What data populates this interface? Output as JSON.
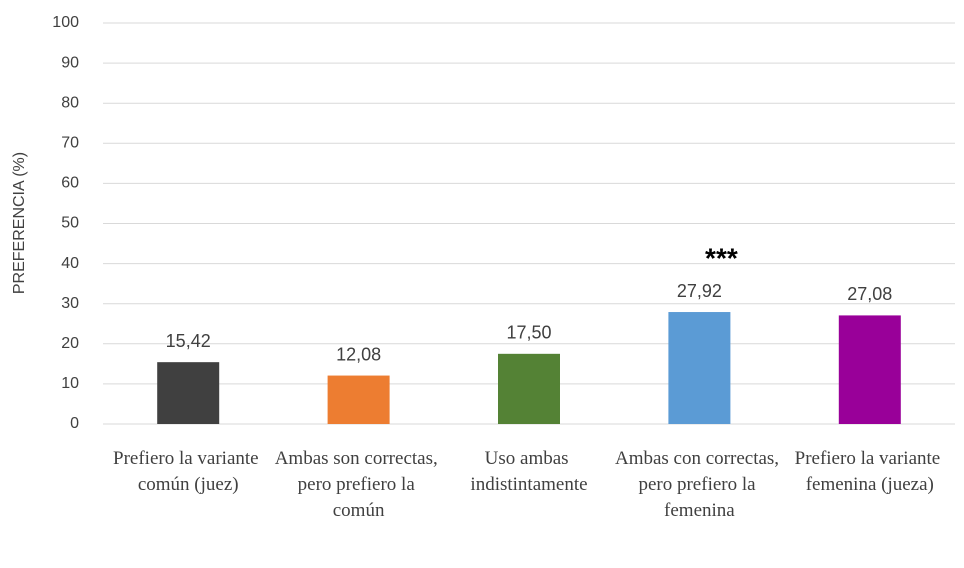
{
  "chart_data": {
    "type": "bar",
    "y_label": "PREFERENCIA (%)",
    "categories": [
      "Prefiero la variante común (juez)",
      "Ambas son correctas, pero prefiero la común",
      "Uso ambas indistintamente",
      "Ambas con correctas, pero prefiero la femenina",
      "Prefiero la variante femenina (jueza)"
    ],
    "values": [
      15.42,
      12.08,
      17.5,
      27.92,
      27.08
    ],
    "value_labels": [
      "15,42",
      "12,08",
      "17,50",
      "27,92",
      "27,08"
    ],
    "colors": [
      "#404040",
      "#ed7d31",
      "#548235",
      "#5b9bd5",
      "#990099"
    ],
    "annotations": [
      {
        "text": "***",
        "category": "Ambas con correctas, pero prefiero la femenina"
      }
    ],
    "ylim": [
      0,
      100
    ],
    "yticks": [
      0,
      10,
      20,
      30,
      40,
      50,
      60,
      70,
      80,
      90,
      100
    ],
    "grid": true
  }
}
